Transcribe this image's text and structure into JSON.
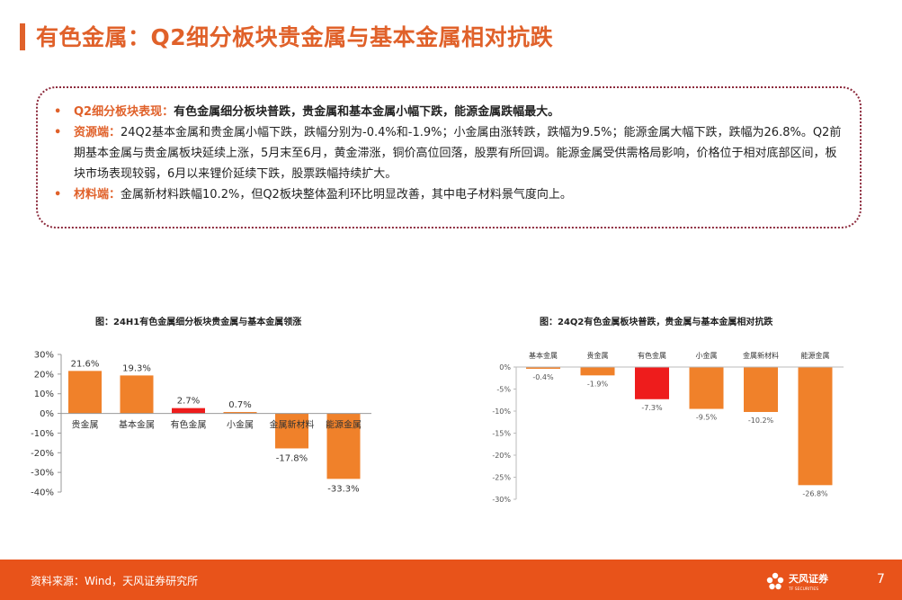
{
  "title": "有色金属：Q2细分板块贵金属与基本金属相对抗跌",
  "bullets": [
    {
      "label": "Q2细分板块表现：",
      "text": "有色金属细分板块普跌，贵金属和基本金属小幅下跌，能源金属跌幅最大。"
    },
    {
      "label": "资源端：",
      "text": "24Q2基本金属和贵金属小幅下跌，跌幅分别为-0.4%和-1.9%；小金属由涨转跌，跌幅为9.5%；能源金属大幅下跌，跌幅为26.8%。Q2前期基本金属与贵金属板块延续上涨，5月末至6月，黄金滞涨，铜价高位回落，股票有所回调。能源金属受供需格局影响，价格位于相对底部区间，板块市场表现较弱，6月以来锂价延续下跌，股票跌幅持续扩大。"
    },
    {
      "label": "材料端：",
      "text": "金属新材料跌幅10.2%，但Q2板块整体盈利环比明显改善，其中电子材料景气度向上。"
    }
  ],
  "chart_data": [
    {
      "type": "bar",
      "title": "图：24H1有色金属细分板块贵金属与基本金属领涨",
      "categories": [
        "贵金属",
        "基本金属",
        "有色金属",
        "小金属",
        "金属新材料",
        "能源金属"
      ],
      "values": [
        21.6,
        19.3,
        2.7,
        0.7,
        -17.8,
        -33.3
      ],
      "value_labels": [
        "21.6%",
        "19.3%",
        "2.7%",
        "0.7%",
        "-17.8%",
        "-33.3%"
      ],
      "ylim": [
        -40,
        30
      ],
      "yticks": [
        30,
        20,
        10,
        0,
        -10,
        -20,
        -30,
        -40
      ],
      "ytick_labels": [
        "30%",
        "20%",
        "10%",
        "0%",
        "-10%",
        "-20%",
        "-30%",
        "-40%"
      ],
      "colors": [
        "#f0812a",
        "#f0812a",
        "#ee1c1c",
        "#f0812a",
        "#f0812a",
        "#f0812a"
      ],
      "grid": false
    },
    {
      "type": "bar",
      "title": "图：24Q2有色金属板块普跌，贵金属与基本金属相对抗跌",
      "categories": [
        "基本金属",
        "贵金属",
        "有色金属",
        "小金属",
        "金属新材料",
        "能源金属"
      ],
      "values": [
        -0.4,
        -1.9,
        -7.3,
        -9.5,
        -10.2,
        -26.8
      ],
      "value_labels": [
        "-0.4%",
        "-1.9%",
        "-7.3%",
        "-9.5%",
        "-10.2%",
        "-26.8%"
      ],
      "ylim": [
        -30,
        0
      ],
      "yticks": [
        0,
        -5,
        -10,
        -15,
        -20,
        -25,
        -30
      ],
      "ytick_labels": [
        "0%",
        "-5%",
        "-10%",
        "-15%",
        "-20%",
        "-25%",
        "-30%"
      ],
      "colors": [
        "#f0812a",
        "#f0812a",
        "#ee1c1c",
        "#f0812a",
        "#f0812a",
        "#f0812a"
      ],
      "grid": false
    }
  ],
  "footer": {
    "source": "资料来源：Wind，天风证券研究所",
    "logo_text": "天风证券",
    "logo_sub": "TF SECURITIES",
    "page": "7"
  }
}
